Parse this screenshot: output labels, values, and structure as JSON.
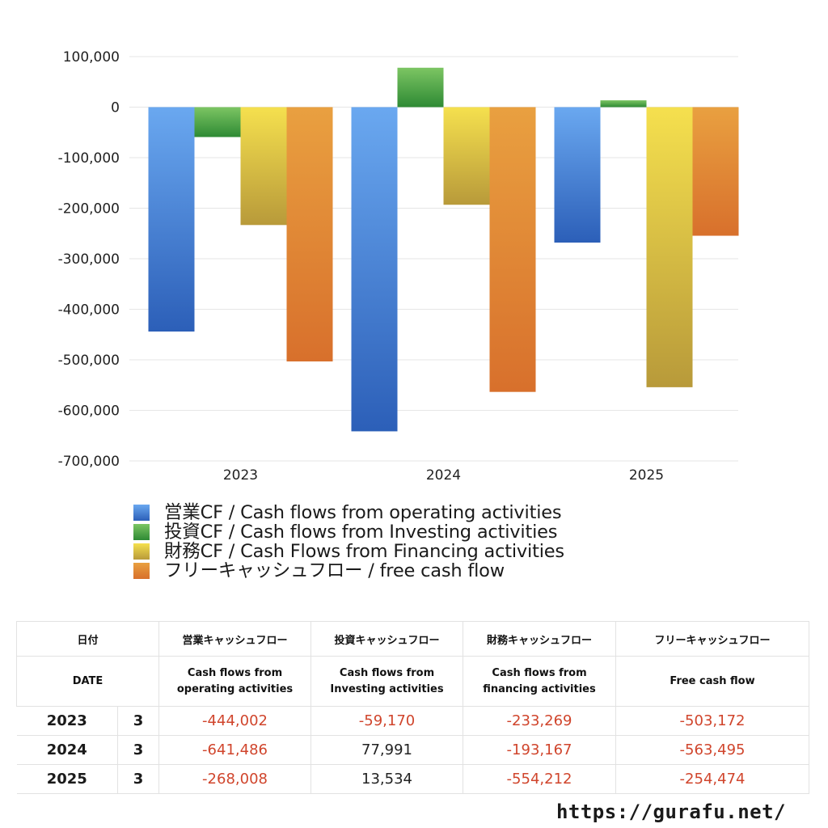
{
  "chart_data": {
    "type": "bar",
    "categories": [
      "2023",
      "2024",
      "2025"
    ],
    "series": [
      {
        "name": "営業CF / Cash flows from operating activities",
        "values": [
          -444002,
          -641486,
          -268008
        ],
        "color_top": "#6aa8f0",
        "color_bottom": "#2c5fb8"
      },
      {
        "name": "投資CF / Cash flows from Investing activities",
        "values": [
          -59170,
          77991,
          13534
        ],
        "color_top": "#7cc563",
        "color_bottom": "#2e8a34"
      },
      {
        "name": "財務CF / Cash Flows from Financing activities",
        "values": [
          -233269,
          -193167,
          -554212
        ],
        "color_top": "#f5e04e",
        "color_bottom": "#b89a3a"
      },
      {
        "name": "フリーキャッシュフロー / free cash flow",
        "values": [
          -503172,
          -563495,
          -254474
        ],
        "color_top": "#e9a040",
        "color_bottom": "#d8702c"
      }
    ],
    "yticks": [
      "100,000",
      "0",
      "-100,000",
      "-200,000",
      "-300,000",
      "-400,000",
      "-500,000",
      "-600,000",
      "-700,000"
    ],
    "ytick_values": [
      100000,
      0,
      -100000,
      -200000,
      -300000,
      -400000,
      -500000,
      -600000,
      -700000
    ],
    "ylim": [
      -700000,
      100000
    ],
    "grid": true,
    "legend_position": "bottom"
  },
  "table": {
    "header1": {
      "date": "日付",
      "operating": "営業キャッシュフロー",
      "investing": "投資キャッシュフロー",
      "financing": "財務キャッシュフロー",
      "free": "フリーキャッシュフロー"
    },
    "header2": {
      "date": "DATE",
      "operating_line1": "Cash flows from",
      "operating_line2": "operating activities",
      "investing_line1": "Cash flows from",
      "investing_line2": "Investing activities",
      "financing_line1": "Cash flows from",
      "financing_line2": "financing activities",
      "free": "Free cash flow"
    },
    "rows": [
      {
        "year": "2023",
        "month": "3",
        "operating": "-444,002",
        "investing": "-59,170",
        "financing": "-233,269",
        "free": "-503,172"
      },
      {
        "year": "2024",
        "month": "3",
        "operating": "-641,486",
        "investing": "77,991",
        "financing": "-193,167",
        "free": "-563,495"
      },
      {
        "year": "2025",
        "month": "3",
        "operating": "-268,008",
        "investing": "13,534",
        "financing": "-554,212",
        "free": "-254,474"
      }
    ],
    "negative_color": "#d0452c"
  },
  "footer": {
    "url": "https://gurafu.net/"
  }
}
